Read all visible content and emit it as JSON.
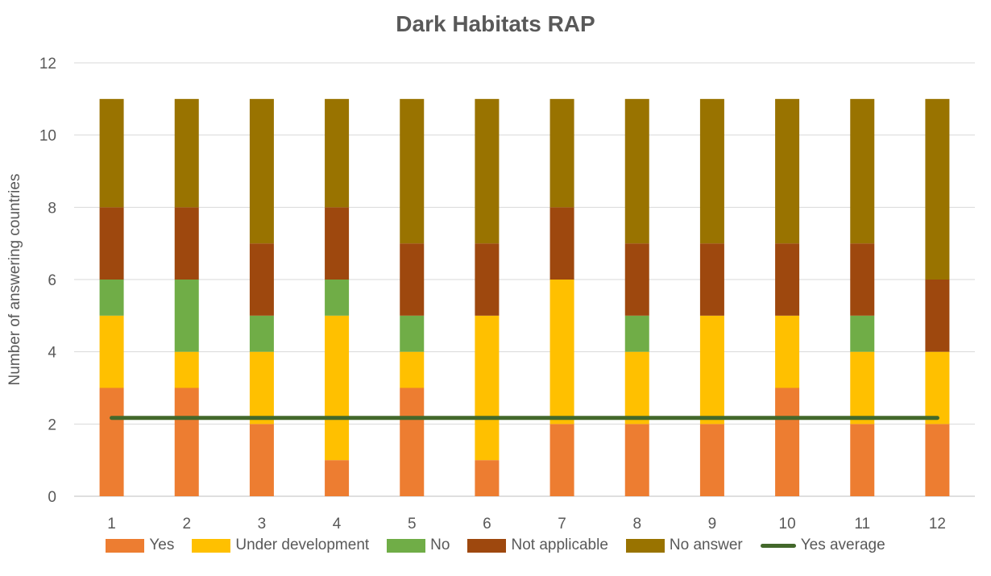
{
  "chart_data": {
    "type": "bar",
    "stacked": true,
    "title": "Dark Habitats RAP",
    "xlabel": "",
    "ylabel": "Number of answering countries",
    "ylim": [
      0,
      12
    ],
    "yticks": [
      0,
      2,
      4,
      6,
      8,
      10,
      12
    ],
    "grid": true,
    "legend_position": "bottom",
    "categories": [
      "1",
      "2",
      "3",
      "4",
      "5",
      "6",
      "7",
      "8",
      "9",
      "10",
      "11",
      "12"
    ],
    "series": [
      {
        "name": "Yes",
        "color": "#ED7D31",
        "values": [
          3,
          3,
          2,
          1,
          3,
          1,
          2,
          2,
          2,
          3,
          2,
          2
        ]
      },
      {
        "name": "Under development",
        "color": "#FFC000",
        "values": [
          2,
          1,
          2,
          4,
          1,
          4,
          4,
          2,
          3,
          2,
          2,
          2
        ]
      },
      {
        "name": "No",
        "color": "#70AD47",
        "values": [
          1,
          2,
          1,
          1,
          1,
          0,
          0,
          1,
          0,
          0,
          1,
          0
        ]
      },
      {
        "name": "Not applicable",
        "color": "#9E480E",
        "values": [
          2,
          2,
          2,
          2,
          2,
          2,
          2,
          2,
          2,
          2,
          2,
          2
        ]
      },
      {
        "name": "No answer",
        "color": "#997300",
        "values": [
          3,
          3,
          4,
          3,
          4,
          4,
          3,
          4,
          4,
          4,
          4,
          5
        ]
      }
    ],
    "lines": [
      {
        "name": "Yes average",
        "color": "#43682B",
        "value": 2.17
      }
    ]
  }
}
